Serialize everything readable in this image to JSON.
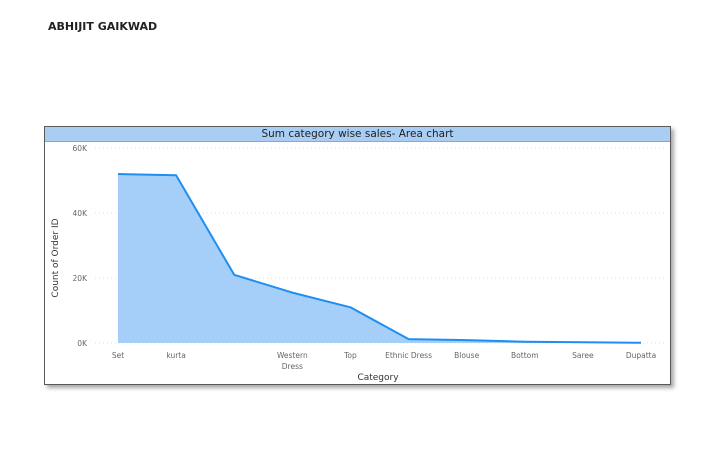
{
  "header": {
    "author": "ABHIJIT GAIKWAD"
  },
  "chart_data": {
    "type": "area",
    "title": "Sum category wise sales- Area chart",
    "xlabel": "Category",
    "ylabel": "Count of Order ID",
    "categories": [
      "Set",
      "kurta",
      "",
      "Western Dress",
      "Top",
      "Ethnic Dress",
      "Blouse",
      "Bottom",
      "Saree",
      "Dupatta"
    ],
    "tick_labels": [
      [
        "Set"
      ],
      [
        "kurta"
      ],
      [],
      [
        "Western",
        "Dress"
      ],
      [
        "Top"
      ],
      [
        "Ethnic Dress"
      ],
      [
        "Blouse"
      ],
      [
        "Bottom"
      ],
      [
        "Saree"
      ],
      [
        "Dupatta"
      ]
    ],
    "values": [
      52000,
      51600,
      21000,
      15500,
      11000,
      1200,
      900,
      400,
      200,
      50
    ],
    "ylim": [
      0,
      60000
    ],
    "yticks": [
      0,
      20000,
      40000,
      60000
    ],
    "ytick_labels": [
      "0K",
      "20K",
      "40K",
      "60K"
    ],
    "grid": true,
    "colors": {
      "fill": "#a5cff9",
      "line": "#1e8ff0",
      "title_bar": "#a9cdf3"
    }
  }
}
